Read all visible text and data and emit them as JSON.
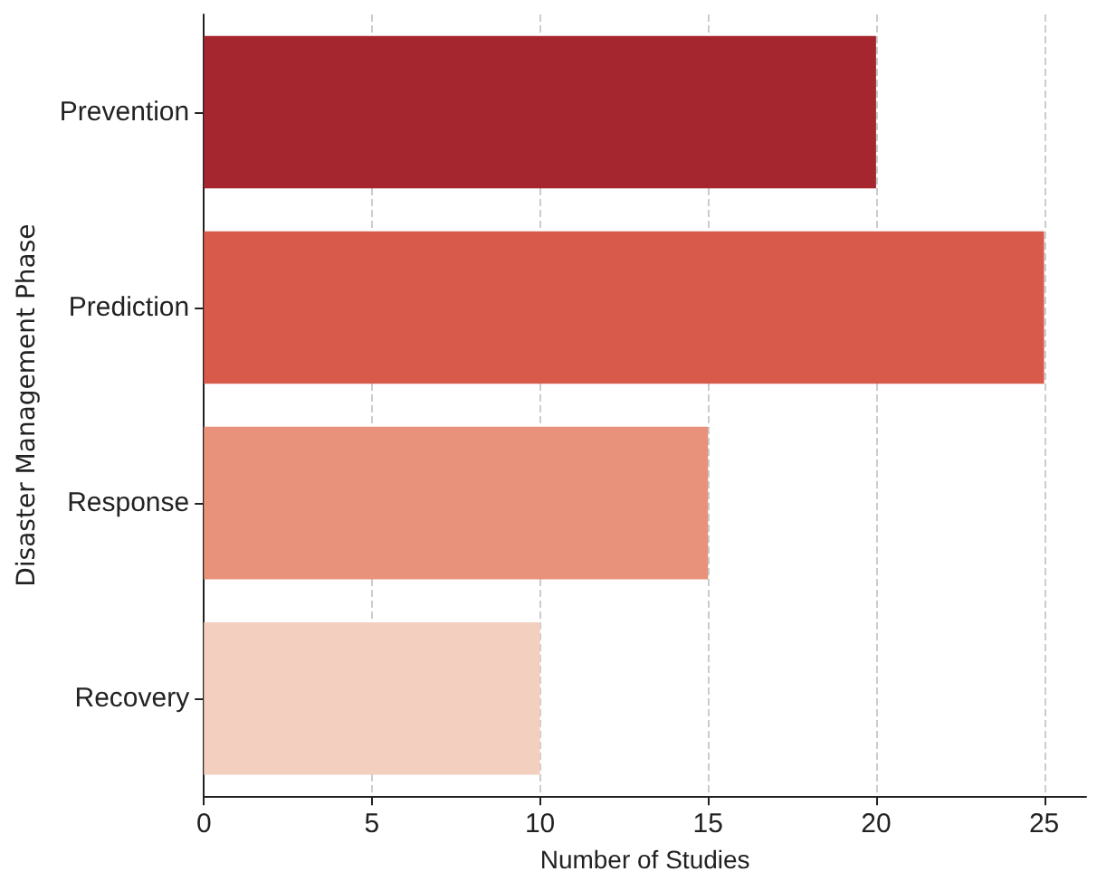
{
  "chart_data": {
    "type": "bar",
    "orientation": "horizontal",
    "xlabel": "Number of Studies",
    "ylabel": "Disaster Management Phase",
    "categories": [
      "Prevention",
      "Prediction",
      "Response",
      "Recovery"
    ],
    "values": [
      20,
      25,
      15,
      10
    ],
    "colors": [
      "#a5262e",
      "#d85a4b",
      "#e8927b",
      "#f2cfbf"
    ],
    "xlim": [
      0,
      26.25
    ],
    "xticks": [
      0,
      5,
      10,
      15,
      20,
      25
    ],
    "grid": "x"
  }
}
